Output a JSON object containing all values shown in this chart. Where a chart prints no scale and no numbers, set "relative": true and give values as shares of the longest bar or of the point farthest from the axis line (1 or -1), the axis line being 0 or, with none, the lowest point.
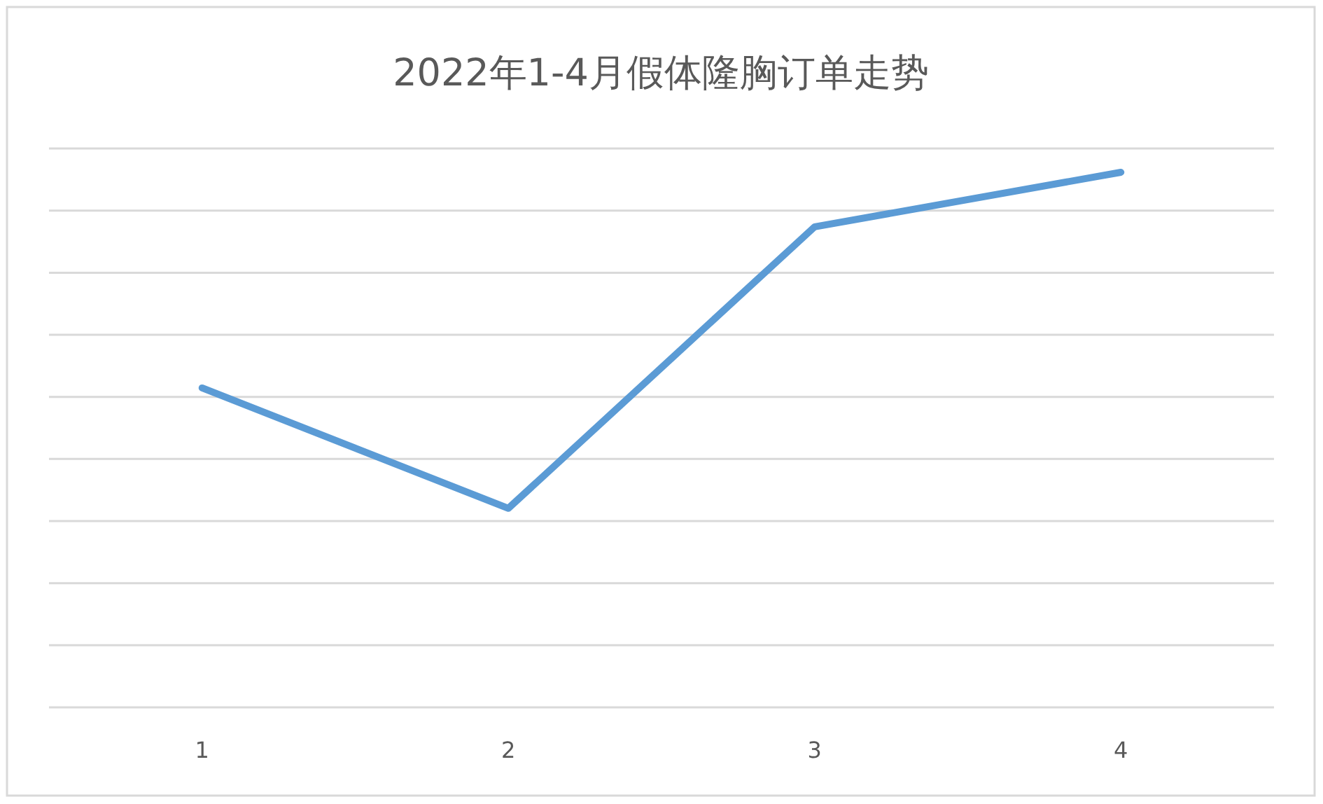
{
  "chart_data": {
    "type": "line",
    "title": "2022年1-4月假体隆胸订单走势",
    "relative": true,
    "grid": true,
    "categories": [
      "1",
      "2",
      "3",
      "4"
    ],
    "values": [
      0.597,
      0.372,
      0.898,
      1
    ],
    "color": "#5b9bd5"
  }
}
